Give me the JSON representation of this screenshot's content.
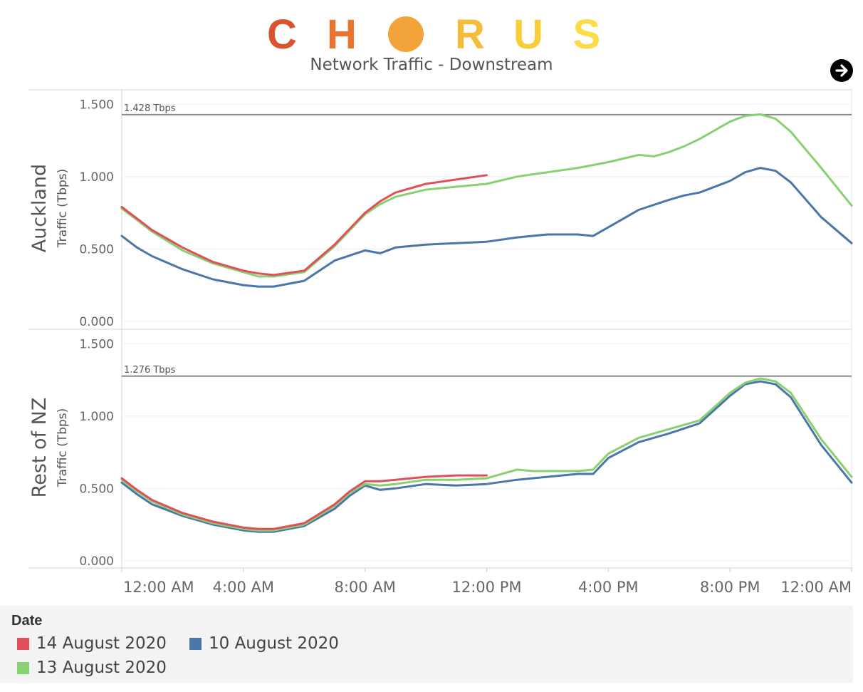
{
  "header": {
    "logo_letters": [
      "C",
      "H",
      "",
      "R",
      "U",
      "S"
    ],
    "logo_colors": [
      "#d9532c",
      "#e8742f",
      "#f2a43a",
      "#f5bc3a",
      "#f8cd3a",
      "#fbdc48"
    ],
    "subtitle": "Network Traffic - Downstream"
  },
  "nav": {
    "next_icon": "arrow-right-circle-icon"
  },
  "legend": {
    "title": "Date",
    "items": [
      {
        "label": "14 August 2020",
        "color": "#e0505a"
      },
      {
        "label": "10 August 2020",
        "color": "#4a76a8"
      },
      {
        "label": "13 August 2020",
        "color": "#88d070"
      }
    ]
  },
  "chart_data": {
    "type": "line",
    "x_ticks": [
      "12:00 AM",
      "4:00 AM",
      "8:00 AM",
      "12:00 PM",
      "4:00 PM",
      "8:00 PM",
      "12:00 AM"
    ],
    "x_tick_hours": [
      0,
      4,
      8,
      12,
      16,
      20,
      24
    ],
    "x_range_hours": [
      0,
      24
    ],
    "panels": [
      {
        "row_label": "Auckland",
        "ylabel": "Traffic (Tbps)",
        "y_ticks": [
          "0.000",
          "0.500",
          "1.000",
          "1.500"
        ],
        "y_tick_values": [
          0,
          0.5,
          1.0,
          1.5
        ],
        "ylim": [
          -0.05,
          1.6
        ],
        "reference_line": {
          "value": 1.428,
          "label": "1.428 Tbps"
        },
        "series": [
          {
            "name": "10 August 2020",
            "color": "#4a76a8",
            "hours": [
              0,
              0.5,
              1,
              2,
              3,
              4,
              4.5,
              5,
              6,
              7,
              8,
              8.5,
              9,
              10,
              12,
              13,
              14,
              15,
              15.5,
              16,
              16.5,
              17,
              18,
              18.5,
              19,
              20,
              20.5,
              21,
              21.5,
              22,
              23,
              24
            ],
            "values": [
              0.59,
              0.51,
              0.45,
              0.36,
              0.29,
              0.25,
              0.24,
              0.24,
              0.28,
              0.42,
              0.49,
              0.47,
              0.51,
              0.53,
              0.55,
              0.58,
              0.6,
              0.6,
              0.59,
              0.65,
              0.71,
              0.77,
              0.84,
              0.87,
              0.89,
              0.97,
              1.03,
              1.06,
              1.04,
              0.96,
              0.72,
              0.54
            ]
          },
          {
            "name": "13 August 2020",
            "color": "#88d070",
            "hours": [
              0,
              0.5,
              1,
              2,
              3,
              4,
              4.5,
              5,
              6,
              7,
              8,
              8.5,
              9,
              10,
              11,
              12,
              13,
              14,
              15,
              16,
              17,
              17.5,
              18,
              18.5,
              19,
              20,
              20.5,
              21,
              21.5,
              22,
              23,
              24
            ],
            "values": [
              0.78,
              0.7,
              0.62,
              0.49,
              0.4,
              0.34,
              0.31,
              0.31,
              0.34,
              0.52,
              0.74,
              0.81,
              0.86,
              0.91,
              0.93,
              0.95,
              1.0,
              1.03,
              1.06,
              1.1,
              1.15,
              1.14,
              1.17,
              1.21,
              1.26,
              1.38,
              1.42,
              1.43,
              1.4,
              1.31,
              1.06,
              0.8
            ]
          },
          {
            "name": "14 August 2020",
            "color": "#e0505a",
            "hours": [
              0,
              0.5,
              1,
              2,
              3,
              4,
              4.5,
              5,
              6,
              7,
              7.5,
              8,
              8.5,
              9,
              10,
              11,
              12
            ],
            "values": [
              0.79,
              0.71,
              0.63,
              0.51,
              0.41,
              0.35,
              0.33,
              0.32,
              0.35,
              0.53,
              0.64,
              0.75,
              0.83,
              0.89,
              0.95,
              0.98,
              1.01
            ]
          }
        ]
      },
      {
        "row_label": "Rest of NZ",
        "ylabel": "Traffic (Tbps)",
        "y_ticks": [
          "0.000",
          "0.500",
          "1.000",
          "1.500"
        ],
        "y_tick_values": [
          0,
          0.5,
          1.0,
          1.5
        ],
        "ylim": [
          -0.05,
          1.6
        ],
        "reference_line": {
          "value": 1.276,
          "label": "1.276 Tbps"
        },
        "series": [
          {
            "name": "10 August 2020",
            "color": "#4a76a8",
            "hours": [
              0,
              0.5,
              1,
              2,
              3,
              4,
              4.5,
              5,
              6,
              7,
              7.5,
              8,
              8.5,
              9,
              10,
              11,
              12,
              13,
              14,
              15,
              15.5,
              16,
              17,
              18,
              19,
              20,
              20.5,
              21,
              21.5,
              22,
              23,
              24
            ],
            "values": [
              0.54,
              0.46,
              0.39,
              0.31,
              0.25,
              0.21,
              0.2,
              0.2,
              0.24,
              0.36,
              0.45,
              0.52,
              0.49,
              0.5,
              0.53,
              0.52,
              0.53,
              0.56,
              0.58,
              0.6,
              0.6,
              0.71,
              0.82,
              0.88,
              0.95,
              1.14,
              1.22,
              1.24,
              1.22,
              1.13,
              0.8,
              0.54
            ]
          },
          {
            "name": "13 August 2020",
            "color": "#88d070",
            "hours": [
              0,
              0.5,
              1,
              2,
              3,
              4,
              4.5,
              5,
              6,
              7,
              7.5,
              8,
              8.5,
              9,
              10,
              11,
              12,
              12.5,
              13,
              13.5,
              14,
              15,
              15.5,
              16,
              17,
              18,
              19,
              20,
              20.5,
              21,
              21.5,
              22,
              23,
              24
            ],
            "values": [
              0.56,
              0.48,
              0.41,
              0.32,
              0.26,
              0.22,
              0.21,
              0.21,
              0.25,
              0.38,
              0.47,
              0.53,
              0.52,
              0.53,
              0.56,
              0.56,
              0.57,
              0.6,
              0.63,
              0.62,
              0.62,
              0.62,
              0.63,
              0.74,
              0.85,
              0.91,
              0.97,
              1.16,
              1.23,
              1.26,
              1.24,
              1.16,
              0.84,
              0.58
            ]
          },
          {
            "name": "14 August 2020",
            "color": "#e0505a",
            "hours": [
              0,
              0.5,
              1,
              2,
              3,
              4,
              4.5,
              5,
              6,
              7,
              7.5,
              8,
              8.5,
              9,
              10,
              11,
              12
            ],
            "values": [
              0.57,
              0.49,
              0.42,
              0.33,
              0.27,
              0.23,
              0.22,
              0.22,
              0.26,
              0.39,
              0.48,
              0.55,
              0.55,
              0.56,
              0.58,
              0.59,
              0.59
            ]
          }
        ]
      }
    ]
  }
}
